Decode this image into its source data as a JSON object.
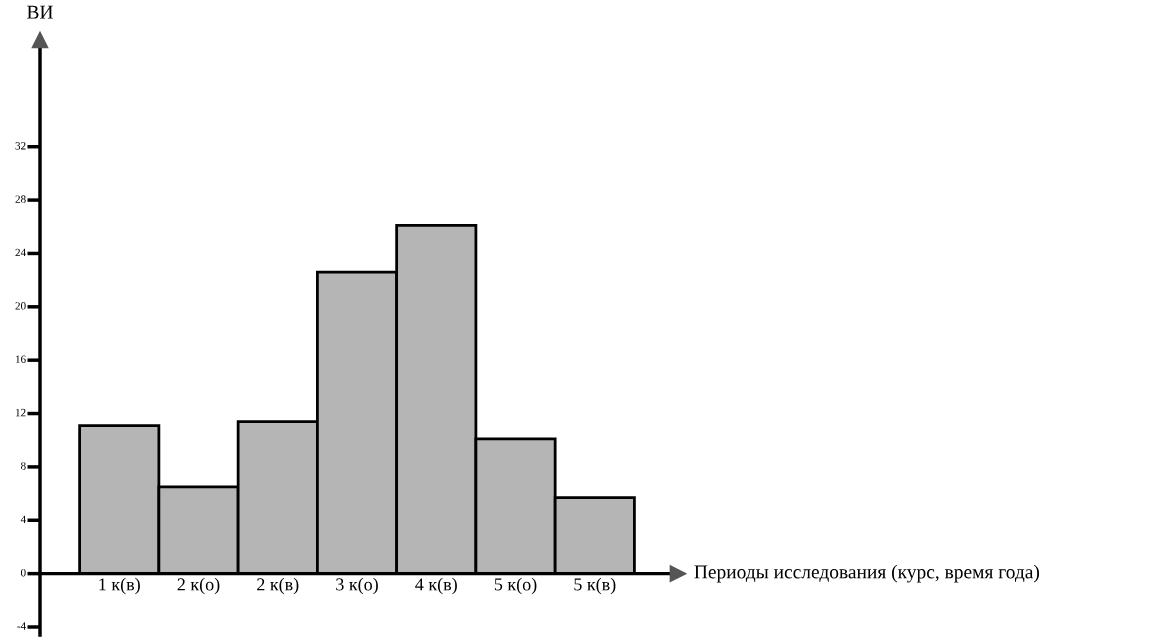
{
  "chart_data": {
    "type": "bar",
    "ylabel": "ВИ",
    "xlabel": "Периоды исследования (курс, время года)",
    "categories": [
      "1 к(в)",
      "2 к(о)",
      "2 к(в)",
      "3 к(о)",
      "4 к(в)",
      "5 к(о)",
      "5 к(в)"
    ],
    "values": [
      11.1,
      6.5,
      11.4,
      22.6,
      26.1,
      10.1,
      5.7
    ],
    "color": "#b5b5b5",
    "ylim": [
      -4.6,
      40
    ],
    "yticks": [
      -4,
      0,
      4,
      8,
      12,
      16,
      20,
      24,
      28,
      32
    ],
    "grid": false
  }
}
